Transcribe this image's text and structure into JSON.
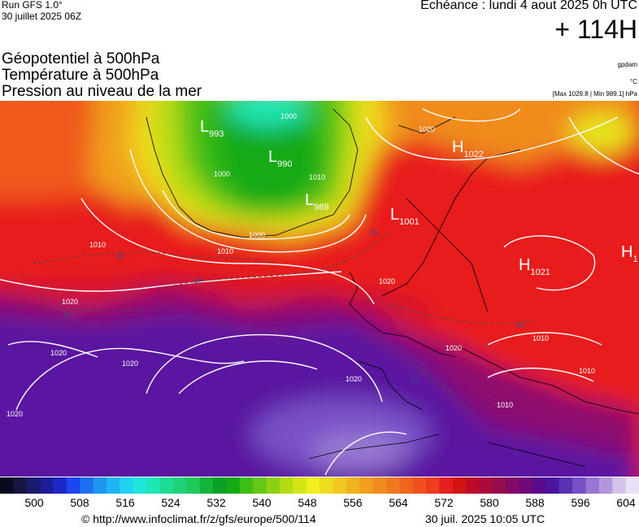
{
  "header": {
    "run_label": "Run GFS 1.0°",
    "run_date": "30 juillet 2025 06Z",
    "echeance": "Echéance : lundi 4 aout 2025 0h UTC",
    "lead_time": "+ 114H"
  },
  "parameters": [
    {
      "label": "Géopotentiel à 500hPa",
      "unit": "gpdam"
    },
    {
      "label": "Température à 500hPa",
      "unit": "°C"
    },
    {
      "label": "Pression au niveau de la mer",
      "unit": "[Max 1029.8 | Min 989.1] hPa"
    }
  ],
  "pressure_centers": [
    {
      "type": "L",
      "value": "993"
    },
    {
      "type": "L",
      "value": "990"
    },
    {
      "type": "L",
      "value": "989"
    },
    {
      "type": "L",
      "value": "1001"
    },
    {
      "type": "H",
      "value": "1022"
    },
    {
      "type": "H",
      "value": "1021"
    },
    {
      "type": "H",
      "value": "1"
    }
  ],
  "isobar_labels": [
    "1000",
    "1000",
    "1010",
    "1010",
    "1020",
    "1020",
    "1020",
    "1020",
    "1020",
    "1020",
    "1010",
    "1010",
    "1010",
    "1020",
    "1010",
    "1000",
    "1020"
  ],
  "isotherm_labels": [
    "-20",
    "-20",
    "-20",
    "-10",
    "-10",
    "-10"
  ],
  "colorbar": {
    "ticks": [
      "500",
      "508",
      "516",
      "524",
      "532",
      "540",
      "548",
      "556",
      "564",
      "572",
      "580",
      "588",
      "596",
      "604"
    ],
    "colors": [
      "#0a0a1e",
      "#151540",
      "#1a1a6e",
      "#1c1c96",
      "#1e28c8",
      "#1e46f0",
      "#1e6ef0",
      "#1e96f0",
      "#1eb4f0",
      "#1ed2f0",
      "#1ee6dc",
      "#1ee6b4",
      "#1edc96",
      "#1ed278",
      "#1ec85a",
      "#14b43c",
      "#0aa028",
      "#14aa14",
      "#3cbe14",
      "#64c814",
      "#8cd214",
      "#b4dc14",
      "#d2e614",
      "#f0f01e",
      "#f0dc1e",
      "#f0c81e",
      "#f0b41e",
      "#f0a01e",
      "#f08c1e",
      "#f0781e",
      "#f0641e",
      "#f0501e",
      "#f03c1e",
      "#e61e1e",
      "#d21414",
      "#be0a28",
      "#aa0a3c",
      "#960a50",
      "#820a64",
      "#6e0a78",
      "#5a0a8c",
      "#4b14a0",
      "#5a32b4",
      "#7850c8",
      "#9678d2",
      "#b496dc",
      "#d2c3eb",
      "#ebe1f5"
    ]
  },
  "footer": {
    "url": "© http://www.infoclimat.fr/z/gfs/europe/500/114",
    "stamp": "30 juil. 2025 10:05 UTC"
  }
}
